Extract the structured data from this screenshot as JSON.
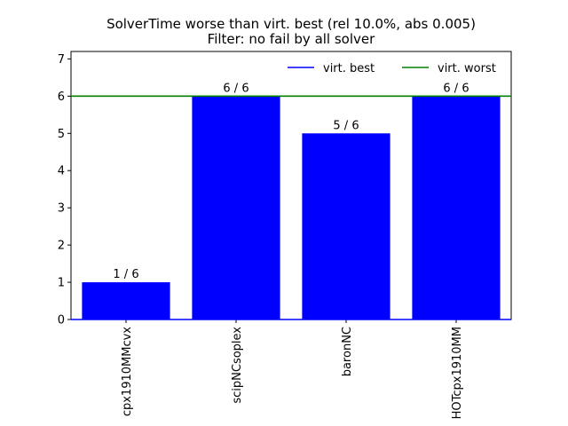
{
  "chart_data": {
    "type": "bar",
    "title": "SolverTime worse than virt. best (rel 10.0%, abs 0.005)",
    "subtitle": "Filter: no fail by all solver",
    "categories": [
      "cpx1910MMcvx",
      "scipNCsoplex",
      "baronNC",
      "HOTcpx1910MM"
    ],
    "values": [
      1,
      6,
      5,
      6
    ],
    "data_labels": [
      "1 / 6",
      "6 / 6",
      "5 / 6",
      "6 / 6"
    ],
    "ylim": [
      0,
      7.2
    ],
    "yticks": [
      0,
      1,
      2,
      3,
      4,
      5,
      6,
      7
    ],
    "bar_color": "#0000ff",
    "lines": [
      {
        "name": "virt. best",
        "y": 0,
        "color": "#0000ff"
      },
      {
        "name": "virt. worst",
        "y": 6,
        "color": "#008000"
      }
    ],
    "legend": "top-right",
    "grid": false
  }
}
